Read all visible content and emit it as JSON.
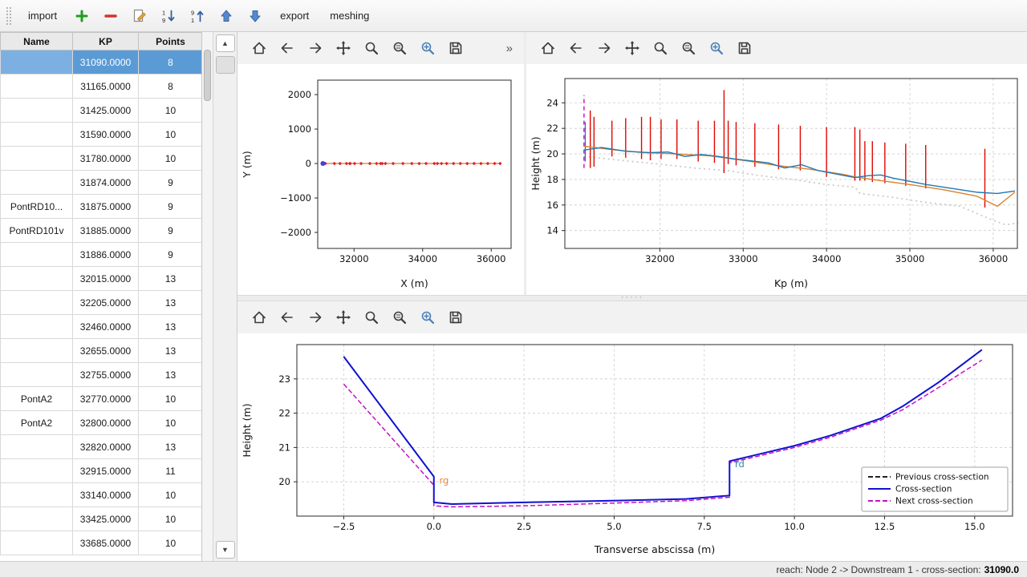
{
  "app_toolbar": {
    "items": [
      {
        "type": "text",
        "name": "import",
        "label": "import"
      },
      {
        "type": "icon",
        "name": "add"
      },
      {
        "type": "icon",
        "name": "remove"
      },
      {
        "type": "icon",
        "name": "edit"
      },
      {
        "type": "icon",
        "name": "sort-descending"
      },
      {
        "type": "icon",
        "name": "sort-ascending"
      },
      {
        "type": "icon",
        "name": "move-up"
      },
      {
        "type": "icon",
        "name": "move-down"
      },
      {
        "type": "text",
        "name": "export",
        "label": "export"
      },
      {
        "type": "text",
        "name": "meshing",
        "label": "meshing"
      }
    ]
  },
  "plot_toolbar": {
    "icons": [
      "home",
      "back",
      "forward",
      "pan",
      "zoom",
      "configure-subplots",
      "edit-parameters",
      "save"
    ],
    "overflow": "»"
  },
  "scrollbar": {
    "up": "▲",
    "down": "▼"
  },
  "table": {
    "columns": [
      "Name",
      "KP",
      "Points"
    ],
    "rows": [
      {
        "name": "",
        "kp": "31090.0000",
        "points": "8",
        "selected": true
      },
      {
        "name": "",
        "kp": "31165.0000",
        "points": "8",
        "selected": false
      },
      {
        "name": "",
        "kp": "31425.0000",
        "points": "10",
        "selected": false
      },
      {
        "name": "",
        "kp": "31590.0000",
        "points": "10",
        "selected": false
      },
      {
        "name": "",
        "kp": "31780.0000",
        "points": "10",
        "selected": false
      },
      {
        "name": "",
        "kp": "31874.0000",
        "points": "9",
        "selected": false
      },
      {
        "name": "PontRD10...",
        "kp": "31875.0000",
        "points": "9",
        "selected": false
      },
      {
        "name": "PontRD101v",
        "kp": "31885.0000",
        "points": "9",
        "selected": false
      },
      {
        "name": "",
        "kp": "31886.0000",
        "points": "9",
        "selected": false
      },
      {
        "name": "",
        "kp": "32015.0000",
        "points": "13",
        "selected": false
      },
      {
        "name": "",
        "kp": "32205.0000",
        "points": "13",
        "selected": false
      },
      {
        "name": "",
        "kp": "32460.0000",
        "points": "13",
        "selected": false
      },
      {
        "name": "",
        "kp": "32655.0000",
        "points": "13",
        "selected": false
      },
      {
        "name": "",
        "kp": "32755.0000",
        "points": "13",
        "selected": false
      },
      {
        "name": "PontA2",
        "kp": "32770.0000",
        "points": "10",
        "selected": false
      },
      {
        "name": "PontA2",
        "kp": "32800.0000",
        "points": "10",
        "selected": false
      },
      {
        "name": "",
        "kp": "32820.0000",
        "points": "13",
        "selected": false
      },
      {
        "name": "",
        "kp": "32915.0000",
        "points": "11",
        "selected": false
      },
      {
        "name": "",
        "kp": "33140.0000",
        "points": "10",
        "selected": false
      },
      {
        "name": "",
        "kp": "33425.0000",
        "points": "10",
        "selected": false
      },
      {
        "name": "",
        "kp": "33685.0000",
        "points": "10",
        "selected": false
      }
    ]
  },
  "status": {
    "prefix": "reach: Node 2 -> Downstream 1 - cross-section: ",
    "value": "31090.0"
  },
  "chart_data": [
    {
      "type": "scatter",
      "name": "plan-view",
      "title": "",
      "xlabel": "X (m)",
      "ylabel": "Y (m)",
      "xlim": [
        30940,
        36580
      ],
      "ylim": [
        -2465,
        2420
      ],
      "xticks": [
        32000,
        34000,
        36000
      ],
      "xtick_labels": [
        "32000",
        "34000",
        "36000"
      ],
      "yticks": [
        -2000,
        -1000,
        0,
        1000,
        2000
      ],
      "ytick_labels": [
        "−2000",
        "−1000",
        "0",
        "1000",
        "2000"
      ],
      "grid": false,
      "series": [
        {
          "name": "river-axis-line",
          "type": "line",
          "color": "#e07b39",
          "width": 1.3,
          "x": [
            31090,
            36260
          ],
          "y": [
            0,
            0
          ]
        },
        {
          "name": "cross-section-markers",
          "type": "scatter",
          "marker": "diamond",
          "color": "#dd2222",
          "size": 2.2,
          "x": [
            31165,
            31425,
            31590,
            31780,
            31874,
            31886,
            32015,
            32205,
            32460,
            32655,
            32770,
            32820,
            32915,
            33140,
            33425,
            33685,
            33900,
            34100,
            34340,
            34430,
            34550,
            34700,
            34900,
            35100,
            35300,
            35500,
            35700,
            35900,
            36100,
            36260
          ],
          "y": 0
        },
        {
          "name": "current-section-marker",
          "type": "scatter",
          "marker": "circle",
          "color": "#4a3fd4",
          "size": 3,
          "x": [
            31090
          ],
          "y": 0
        }
      ]
    },
    {
      "type": "line",
      "name": "longitudinal-profile",
      "title": "",
      "xlabel": "Kp (m)",
      "ylabel": "Height (m)",
      "xlim": [
        30860,
        36290
      ],
      "ylim": [
        12.6,
        25.9
      ],
      "xticks": [
        32000,
        33000,
        34000,
        35000,
        36000
      ],
      "xtick_labels": [
        "32000",
        "33000",
        "34000",
        "35000",
        "36000"
      ],
      "yticks": [
        14,
        16,
        18,
        20,
        22,
        24
      ],
      "ytick_labels": [
        "14",
        "16",
        "18",
        "20",
        "22",
        "24"
      ],
      "grid": true,
      "series": [
        {
          "name": "thalweg-dotted",
          "type": "line",
          "color": "#c4c4c4",
          "dash": "2,4",
          "width": 1.6,
          "x": [
            31090,
            31600,
            32000,
            32400,
            32800,
            33200,
            33600,
            34000,
            34340,
            34400,
            34800,
            35200,
            35600,
            36000,
            36150,
            36300
          ],
          "y": [
            19.8,
            19.45,
            19.2,
            18.9,
            18.7,
            18.3,
            18.0,
            17.6,
            17.4,
            16.9,
            16.6,
            16.2,
            15.9,
            14.8,
            14.45,
            14.6
          ]
        },
        {
          "name": "section-extents",
          "type": "vlines",
          "color": "#e10600",
          "width": 1.4,
          "segments": [
            [
              31165,
              18.9,
              23.4
            ],
            [
              31210,
              19.0,
              22.9
            ],
            [
              31425,
              19.8,
              22.6
            ],
            [
              31590,
              19.7,
              22.8
            ],
            [
              31780,
              19.6,
              22.9
            ],
            [
              31886,
              19.5,
              22.9
            ],
            [
              32015,
              19.6,
              22.7
            ],
            [
              32205,
              19.6,
              22.7
            ],
            [
              32460,
              19.4,
              22.6
            ],
            [
              32655,
              19.3,
              22.6
            ],
            [
              32770,
              18.5,
              25.0
            ],
            [
              32820,
              19.2,
              22.6
            ],
            [
              32915,
              19.1,
              22.5
            ],
            [
              33140,
              19.0,
              22.4
            ],
            [
              33425,
              18.8,
              22.3
            ],
            [
              33685,
              18.7,
              22.2
            ],
            [
              34000,
              18.2,
              22.1
            ],
            [
              34340,
              17.9,
              22.1
            ],
            [
              34400,
              17.9,
              21.9
            ],
            [
              34460,
              17.9,
              21.0
            ],
            [
              34550,
              17.8,
              21.0
            ],
            [
              34700,
              17.7,
              20.9
            ],
            [
              34950,
              17.5,
              20.8
            ],
            [
              35190,
              17.3,
              20.7
            ],
            [
              35900,
              15.8,
              20.4
            ]
          ]
        },
        {
          "name": "current-section-line",
          "type": "vlines",
          "color": "#cc00cc",
          "dash": "5,4",
          "width": 1.4,
          "segments": [
            [
              31090,
              18.9,
              24.6
            ]
          ]
        },
        {
          "name": "current-section-extent",
          "type": "vlines",
          "color": "#1f77b4",
          "width": 1.3,
          "segments": [
            [
              31105,
              19.4,
              22.5
            ]
          ]
        },
        {
          "name": "right-bank-line",
          "type": "line",
          "color": "#d9822b",
          "width": 1.4,
          "x": [
            31090,
            31400,
            31800,
            32200,
            32600,
            33000,
            33400,
            33800,
            34200,
            34340,
            34600,
            35000,
            35400,
            35800,
            36050,
            36260
          ],
          "y": [
            20.6,
            20.35,
            20.1,
            20.0,
            19.85,
            19.5,
            19.1,
            18.8,
            18.4,
            18.2,
            17.95,
            17.6,
            17.2,
            16.7,
            15.9,
            17.0
          ]
        },
        {
          "name": "left-bank-line",
          "type": "line",
          "color": "#1f77b4",
          "width": 1.4,
          "x": [
            31090,
            31300,
            31600,
            31880,
            32100,
            32300,
            32500,
            32700,
            32900,
            33100,
            33300,
            33500,
            33700,
            33900,
            34100,
            34340,
            34500,
            34650,
            34800,
            35000,
            35200,
            35500,
            35800,
            36050,
            36260
          ],
          "y": [
            20.3,
            20.5,
            20.2,
            20.1,
            20.15,
            19.8,
            19.95,
            19.8,
            19.6,
            19.45,
            19.3,
            18.9,
            19.15,
            18.7,
            18.45,
            18.15,
            18.3,
            18.35,
            18.1,
            17.85,
            17.6,
            17.3,
            17.0,
            16.9,
            17.1
          ]
        }
      ]
    },
    {
      "type": "line",
      "name": "cross-section",
      "title": "",
      "xlabel": "Transverse abscissa (m)",
      "ylabel": "Height (m)",
      "xlim": [
        -3.8,
        16.05
      ],
      "ylim": [
        19.0,
        24.0
      ],
      "xticks": [
        -2.5,
        0,
        2.5,
        5,
        7.5,
        10,
        12.5,
        15
      ],
      "xtick_labels": [
        "−2.5",
        "0.0",
        "2.5",
        "5.0",
        "7.5",
        "10.0",
        "12.5",
        "15.0"
      ],
      "yticks": [
        20,
        21,
        22,
        23
      ],
      "ytick_labels": [
        "20",
        "21",
        "22",
        "23"
      ],
      "grid": true,
      "series": [
        {
          "name": "previous-cross-section",
          "type": "line",
          "color": "#222222",
          "dash": "6,3",
          "width": 1.5,
          "x": [
            -2.5,
            0.0,
            0.0,
            0.5,
            2.5,
            5.0,
            7.0,
            8.2,
            8.2,
            9.0,
            10.0,
            11.0,
            12.4,
            13.0,
            14.0,
            15.2
          ],
          "y": [
            23.65,
            20.15,
            19.4,
            19.35,
            19.4,
            19.45,
            19.5,
            19.6,
            20.6,
            20.8,
            21.05,
            21.35,
            21.85,
            22.2,
            22.9,
            23.85
          ]
        },
        {
          "name": "next-cross-section",
          "type": "line",
          "color": "#c410c4",
          "dash": "6,3",
          "width": 1.5,
          "x": [
            -2.5,
            0.0,
            0.0,
            0.5,
            2.5,
            5.0,
            7.0,
            8.2,
            8.2,
            9.0,
            10.0,
            11.0,
            12.4,
            13.0,
            14.0,
            15.2
          ],
          "y": [
            22.85,
            19.9,
            19.3,
            19.27,
            19.3,
            19.38,
            19.45,
            19.55,
            20.55,
            20.75,
            21.0,
            21.3,
            21.8,
            22.1,
            22.75,
            23.55
          ]
        },
        {
          "name": "cross-section-line",
          "type": "line",
          "color": "#1212cf",
          "width": 2,
          "x": [
            -2.5,
            0.0,
            0.0,
            0.5,
            2.5,
            5.0,
            7.0,
            8.2,
            8.2,
            9.0,
            10.0,
            11.0,
            12.4,
            13.0,
            14.0,
            15.2
          ],
          "y": [
            23.65,
            20.15,
            19.4,
            19.35,
            19.4,
            19.45,
            19.5,
            19.6,
            20.6,
            20.8,
            21.05,
            21.35,
            21.85,
            22.2,
            22.9,
            23.85
          ]
        }
      ],
      "annotations": [
        {
          "text": "rg",
          "x": 0.15,
          "y": 19.95,
          "color": "#e8883a"
        },
        {
          "text": "rd",
          "x": 8.35,
          "y": 20.42,
          "color": "#2e86ab"
        }
      ],
      "legend": {
        "position": "lower right",
        "entries": [
          {
            "label": "Previous cross-section",
            "color": "#222222",
            "dash": true
          },
          {
            "label": "Cross-section",
            "color": "#1212cf",
            "dash": false
          },
          {
            "label": "Next cross-section",
            "color": "#c410c4",
            "dash": true
          }
        ]
      }
    }
  ]
}
